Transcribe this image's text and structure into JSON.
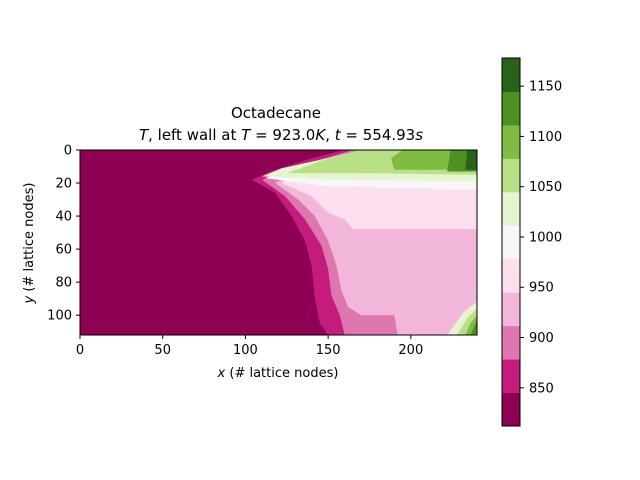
{
  "chart_data": {
    "type": "heatmap",
    "title_line1": "Octadecane",
    "title_line2_parts": {
      "var": "T",
      "mid": ", left wall at ",
      "tvar": "T",
      "eq1": " = 923.0",
      "unit1": "K",
      "sep": ", ",
      "timevar": "t",
      "eq2": " = 554.93",
      "unit2": "s"
    },
    "xlabel": {
      "var": "x",
      "rest": " (# lattice nodes)"
    },
    "ylabel": {
      "var": "y",
      "rest": " (# lattice nodes)"
    },
    "xlim": [
      0,
      240
    ],
    "ylim": [
      112,
      0
    ],
    "xticks": [
      "0",
      "50",
      "100",
      "150",
      "200"
    ],
    "xtick_values": [
      0,
      50,
      100,
      150,
      200
    ],
    "yticks": [
      "0",
      "20",
      "40",
      "60",
      "80",
      "100"
    ],
    "ytick_values": [
      0,
      20,
      40,
      60,
      80,
      100
    ],
    "colorbar": {
      "levels": [
        812,
        825,
        850,
        875,
        900,
        925,
        950,
        975,
        1000,
        1025,
        1050,
        1075,
        1100,
        1125,
        1150,
        1178
      ],
      "colors": [
        "#8e0152",
        "#c51b7d",
        "#de77ae",
        "#f1b6da",
        "#fde0ef",
        "#f7f7f7",
        "#e6f5d0",
        "#b8e186",
        "#7fbc41",
        "#4d9221",
        "#276419"
      ],
      "band_colors": [
        "#8e0152",
        "#c51b7d",
        "#de77ae",
        "#f1b6da",
        "#f1b6da",
        "#fde0ef",
        "#f7f7f7",
        "#f7f7f7",
        "#e6f5d0",
        "#b8e186",
        "#b8e186",
        "#7fbc41",
        "#4d9221",
        "#4d9221",
        "#276419"
      ],
      "ticks": [
        "850",
        "900",
        "950",
        "1000",
        "1050",
        "1100",
        "1150"
      ],
      "tick_values": [
        850,
        900,
        950,
        1000,
        1050,
        1100,
        1150
      ]
    },
    "regions_description_free": true,
    "field": {
      "liquid_front_top": [
        [
          105,
          18
        ],
        [
          120,
          35
        ],
        [
          135,
          55
        ],
        [
          142,
          75
        ],
        [
          145,
          95
        ],
        [
          150,
          112
        ]
      ],
      "colors": {
        "solid": "#8e0152",
        "c850": "#c51b7d",
        "c875": "#de77ae",
        "c925": "#f1b6da",
        "c950": "#fde0ef",
        "c1000": "#f7f7f7",
        "c1025": "#e6f5d0",
        "c1050": "#b8e186",
        "c1100": "#7fbc41",
        "c1125": "#4d9221",
        "c1175": "#276419"
      }
    }
  }
}
